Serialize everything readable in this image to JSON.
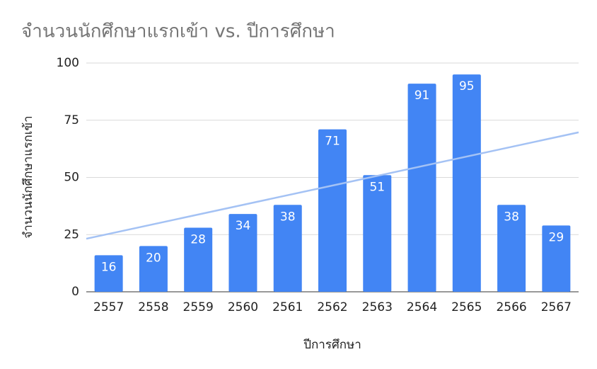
{
  "chart_data": {
    "type": "bar",
    "title": "จำนวนนักศึกษาแรกเข้า vs. ปีการศึกษา",
    "x_label": "ปีการศึกษา",
    "y_label": "จำนวนนักศึกษาแรกเข้า",
    "categories": [
      "2557",
      "2558",
      "2559",
      "2560",
      "2561",
      "2562",
      "2563",
      "2564",
      "2565",
      "2566",
      "2567"
    ],
    "values": [
      16,
      20,
      28,
      34,
      38,
      71,
      51,
      91,
      95,
      38,
      29
    ],
    "color": "#4285f4",
    "trendline": true,
    "trendline_color": "#a4c2f4",
    "ylim": [
      0,
      100
    ],
    "yticks": [
      0,
      25,
      50,
      75,
      100
    ],
    "grid": true
  }
}
